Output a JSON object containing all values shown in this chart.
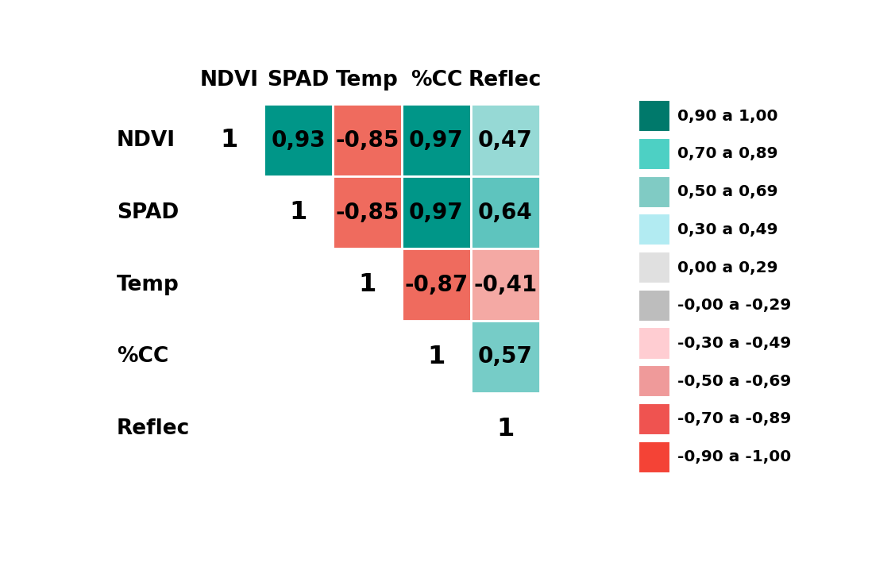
{
  "labels": [
    "NDVI",
    "SPAD",
    "Temp",
    "%CC",
    "Reflec"
  ],
  "matrix": [
    [
      1.0,
      0.93,
      -0.85,
      0.97,
      0.47
    ],
    [
      null,
      1.0,
      -0.85,
      0.97,
      0.64
    ],
    [
      null,
      null,
      1.0,
      -0.87,
      -0.41
    ],
    [
      null,
      null,
      null,
      1.0,
      0.57
    ],
    [
      null,
      null,
      null,
      null,
      1.0
    ]
  ],
  "cell_colors": [
    [
      null,
      "#009688",
      "#EF6B5E",
      "#009688",
      "#96D9D5"
    ],
    [
      null,
      null,
      "#EF6B5E",
      "#009688",
      "#5EC4BE"
    ],
    [
      null,
      null,
      null,
      "#EF6B5E",
      "#F4A9A4"
    ],
    [
      null,
      null,
      null,
      null,
      "#76CCC7"
    ],
    [
      null,
      null,
      null,
      null,
      null
    ]
  ],
  "legend_colors": [
    "#00796B",
    "#4DD0C4",
    "#80CBC4",
    "#B2EBF2",
    "#E0E0E0",
    "#BDBDBD",
    "#FFCDD2",
    "#EF9A9A",
    "#EF5350",
    "#F44336"
  ],
  "legend_labels": [
    "0,90 a 1,00",
    "0,70 a 0,89",
    "0,50 a 0,69",
    "0,30 a 0,49",
    "0,00 a 0,29",
    "-0,00 a -0,29",
    "-0,30 a -0,49",
    "-0,50 a -0,69",
    "-0,70 a -0,89",
    "-0,90 a -1,00"
  ],
  "bg_color": "#FFFFFF",
  "text_color": "#000000"
}
